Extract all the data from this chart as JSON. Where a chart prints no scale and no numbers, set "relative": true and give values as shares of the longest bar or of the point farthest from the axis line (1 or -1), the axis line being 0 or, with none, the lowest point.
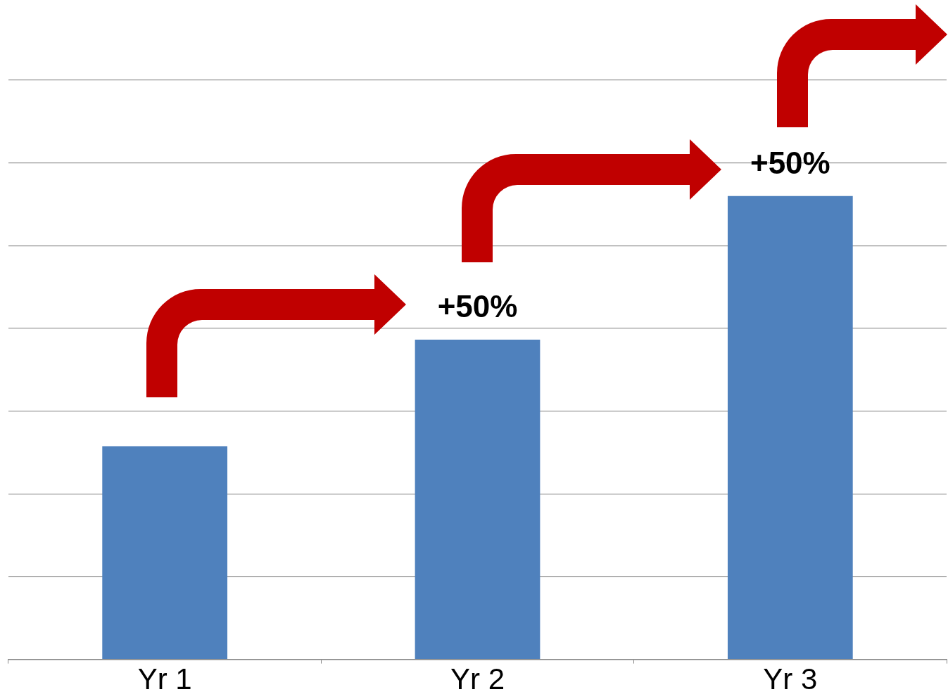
{
  "chart_data": {
    "type": "bar",
    "relative": true,
    "categories": [
      "Yr 1",
      "Yr 2",
      "Yr 3"
    ],
    "values": [
      0.46,
      0.69,
      1
    ],
    "color": "#4f81bd",
    "grid": "y",
    "legend": false,
    "annotations": [
      "+50%",
      "+50%"
    ]
  }
}
